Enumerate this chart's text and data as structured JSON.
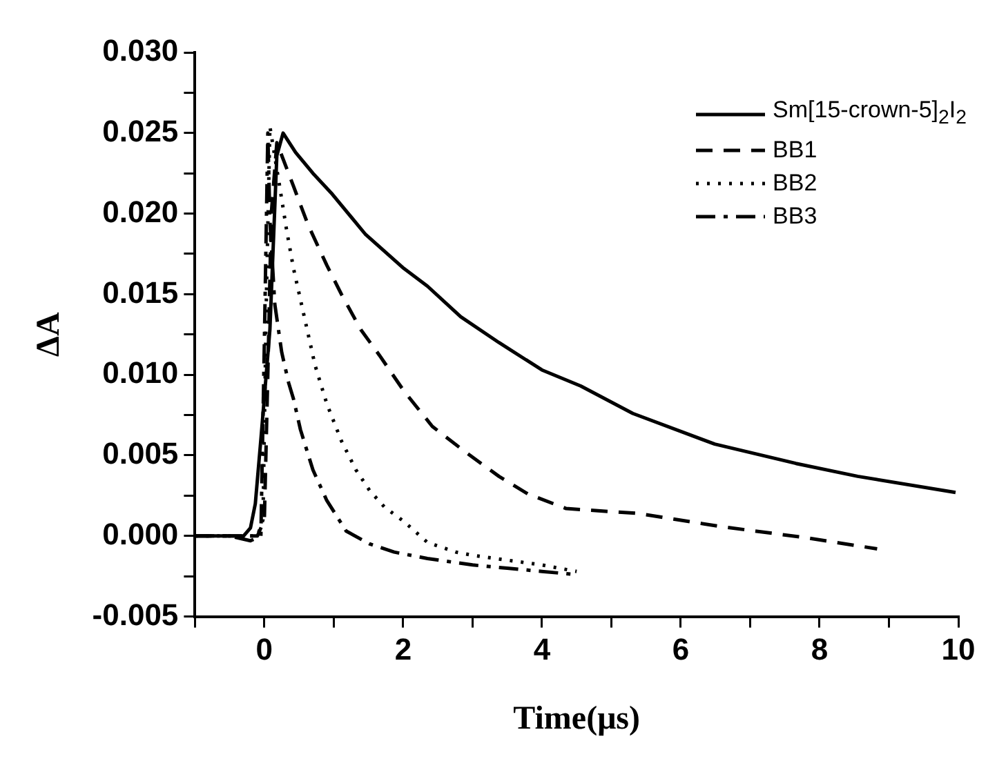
{
  "chart_data": {
    "type": "line",
    "xlabel": "Time(μs)",
    "ylabel": "ΔA",
    "xlim": [
      -1,
      10
    ],
    "ylim": [
      -0.005,
      0.03
    ],
    "xticks": [
      {
        "value": -1,
        "label": null
      },
      {
        "value": 0,
        "label": "0"
      },
      {
        "value": 1,
        "label": null
      },
      {
        "value": 2,
        "label": "2"
      },
      {
        "value": 3,
        "label": null
      },
      {
        "value": 4,
        "label": "4"
      },
      {
        "value": 5,
        "label": null
      },
      {
        "value": 6,
        "label": "6"
      },
      {
        "value": 7,
        "label": null
      },
      {
        "value": 8,
        "label": "8"
      },
      {
        "value": 9,
        "label": null
      },
      {
        "value": 10,
        "label": "10"
      }
    ],
    "yticks": [
      {
        "value": -0.005,
        "label": "-0.005"
      },
      {
        "value": -0.0025,
        "label": null
      },
      {
        "value": 0,
        "label": "0.000"
      },
      {
        "value": 0.0025,
        "label": null
      },
      {
        "value": 0.005,
        "label": "0.005"
      },
      {
        "value": 0.0075,
        "label": null
      },
      {
        "value": 0.01,
        "label": "0.010"
      },
      {
        "value": 0.0125,
        "label": null
      },
      {
        "value": 0.015,
        "label": "0.015"
      },
      {
        "value": 0.0175,
        "label": null
      },
      {
        "value": 0.02,
        "label": "0.020"
      },
      {
        "value": 0.0225,
        "label": null
      },
      {
        "value": 0.025,
        "label": "0.025"
      },
      {
        "value": 0.0275,
        "label": null
      },
      {
        "value": 0.03,
        "label": "0.030"
      }
    ],
    "grid": false,
    "legend": "top right",
    "marker": "none",
    "series": [
      {
        "name": "Sm[15-crown-5]$_{2}$I$_{2}$",
        "color": "#000000",
        "line_style": "solid",
        "x": [
          -1,
          -0.6,
          -0.3,
          -0.2,
          -0.13,
          -0.05,
          0.08,
          0.18,
          0.27,
          0.45,
          0.7,
          0.98,
          1.46,
          2.01,
          2.35,
          2.83,
          3.38,
          4.0,
          4.56,
          5.31,
          6.49,
          7.66,
          8.55,
          9.96
        ],
        "values": [
          0,
          0,
          0,
          0.0005,
          0.002,
          0.006,
          0.0128,
          0.0236,
          0.025,
          0.0238,
          0.0225,
          0.0212,
          0.0187,
          0.0166,
          0.0155,
          0.0136,
          0.012,
          0.0103,
          0.0093,
          0.0076,
          0.0057,
          0.0045,
          0.0037,
          0.0027
        ]
      },
      {
        "name": "BB1",
        "color": "#000000",
        "line_style": "dashed",
        "x": [
          -1,
          -0.5,
          -0.1,
          0,
          0.05,
          0.1,
          0.18,
          0.42,
          0.63,
          0.9,
          1.11,
          1.39,
          1.66,
          2.01,
          2.42,
          2.9,
          3.38,
          3.8,
          4.35,
          5.38,
          6.55,
          7.79,
          8.83
        ],
        "values": [
          0,
          0,
          0,
          0.001,
          0.01,
          0.02,
          0.0244,
          0.0217,
          0.0193,
          0.0168,
          0.015,
          0.0128,
          0.0112,
          0.009,
          0.0068,
          0.0052,
          0.0037,
          0.0026,
          0.0017,
          0.0014,
          0.0006,
          -0.0001,
          -0.0008
        ]
      },
      {
        "name": "BB2",
        "color": "#000000",
        "line_style": "dotted",
        "x": [
          -1,
          -0.5,
          -0.1,
          -0.02,
          0.03,
          0.08,
          0.22,
          0.32,
          0.42,
          0.56,
          0.73,
          0.9,
          1.11,
          1.32,
          1.52,
          1.73,
          2.01,
          2.35,
          2.76,
          3.0,
          3.5,
          4.0,
          4.5
        ],
        "values": [
          0,
          0,
          0,
          0.001,
          0.015,
          0.0254,
          0.0217,
          0.019,
          0.0166,
          0.0139,
          0.0106,
          0.0082,
          0.0059,
          0.0041,
          0.0028,
          0.0018,
          0.0009,
          -0.0004,
          -0.001,
          -0.0012,
          -0.0015,
          -0.0018,
          -0.0022
        ]
      },
      {
        "name": "BB3",
        "color": "#000000",
        "line_style": "dashdot",
        "x": [
          -1,
          -0.5,
          -0.2,
          -0.05,
          0.0,
          0.05,
          0.08,
          0.15,
          0.25,
          0.35,
          0.42,
          0.52,
          0.7,
          0.9,
          1.18,
          1.52,
          1.87,
          2.35,
          3.0,
          3.5,
          4.0,
          4.5
        ],
        "values": [
          0,
          0,
          -0.0003,
          0,
          0.012,
          0.025,
          0.0196,
          0.0144,
          0.0114,
          0.0095,
          0.0085,
          0.0066,
          0.0041,
          0.0022,
          0.0003,
          -0.0005,
          -0.001,
          -0.0014,
          -0.0018,
          -0.002,
          -0.0022,
          -0.0024
        ]
      }
    ]
  }
}
